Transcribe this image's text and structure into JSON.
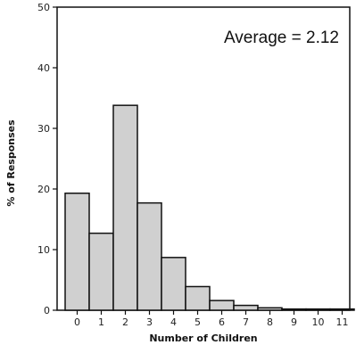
{
  "chart_data": {
    "type": "bar",
    "xlabel": "Number of Children",
    "ylabel": "% of Responses",
    "categories": [
      "0",
      "1",
      "2",
      "3",
      "4",
      "5",
      "6",
      "7",
      "8",
      "9",
      "10",
      "11"
    ],
    "values": [
      19.3,
      12.7,
      33.8,
      17.7,
      8.7,
      3.9,
      1.6,
      0.8,
      0.4,
      0.2,
      0.2,
      0.2
    ],
    "ylim": [
      0,
      50
    ],
    "yticks": [
      "0",
      "10",
      "20",
      "30",
      "40",
      "50"
    ],
    "annotation": "Average = 2.12",
    "grid": false,
    "bar_color": "#d0d0d0",
    "edge_color": "#111111"
  }
}
